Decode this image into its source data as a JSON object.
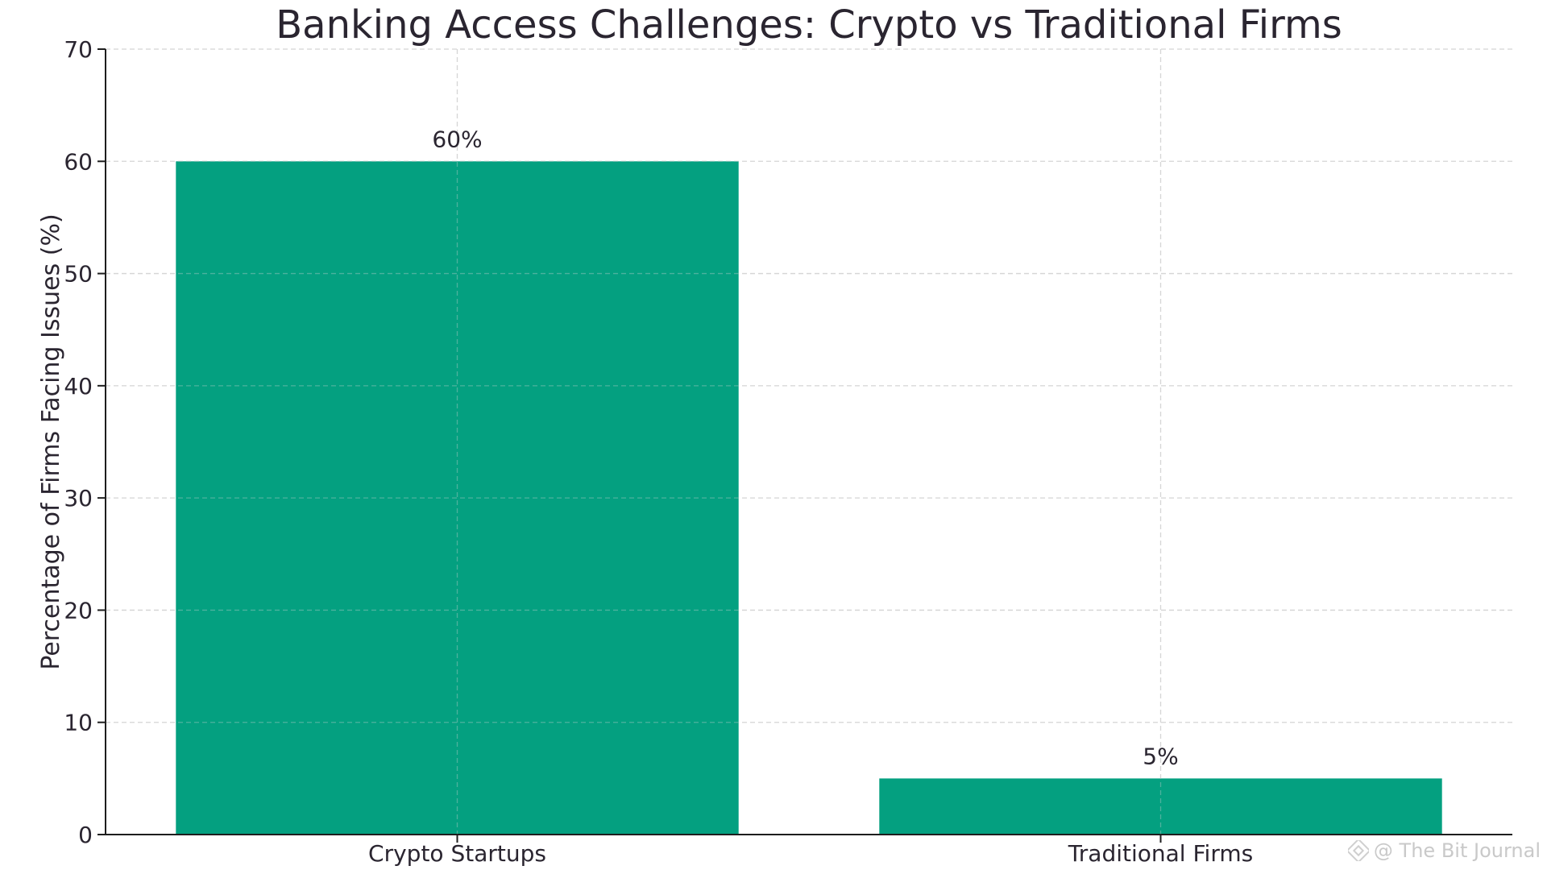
{
  "chart_data": {
    "type": "bar",
    "title": "Banking Access Challenges: Crypto vs Traditional Firms",
    "xlabel": "",
    "ylabel": "Percentage of Firms Facing Issues (%)",
    "categories": [
      "Crypto Startups",
      "Traditional Firms"
    ],
    "values": [
      60,
      5
    ],
    "data_labels": [
      "60%",
      "5%"
    ],
    "ylim": [
      0,
      70
    ],
    "yticks": [
      0,
      10,
      20,
      30,
      40,
      50,
      60,
      70
    ],
    "grid": true,
    "bar_color": "#04a080"
  },
  "watermark": {
    "text": "@ The Bit Journal",
    "icon": "binance-logo-icon"
  }
}
